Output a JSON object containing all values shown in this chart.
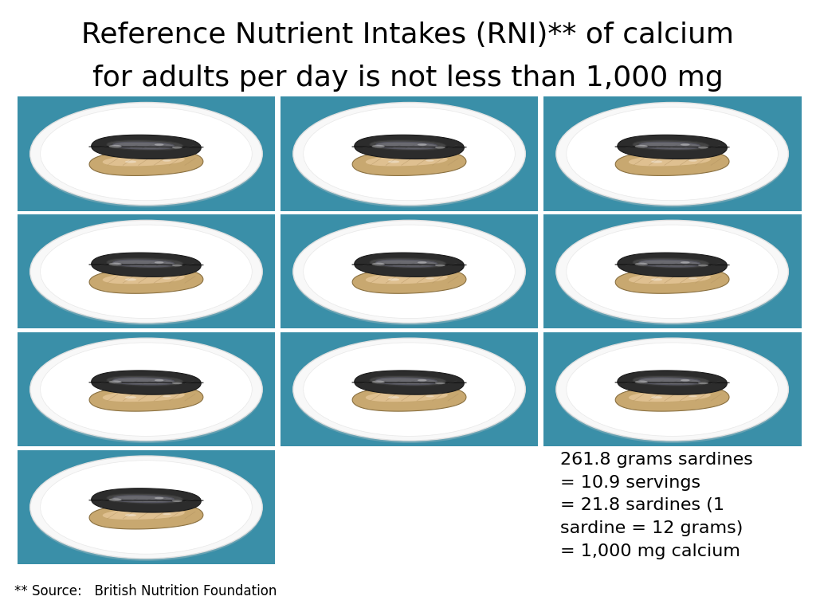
{
  "title_line1": "Reference Nutrient Intakes (RNI)** of calcium",
  "title_line2": "for adults per day is not less than 1,000 mg",
  "annotation_lines": [
    "261.8 grams sardines",
    "= 10.9 servings",
    "= 21.8 sardines (1",
    "sardine = 12 grams)",
    "= 1,000 mg calcium"
  ],
  "source_text": "** Source:   British Nutrition Foundation",
  "bg_color": "#ffffff",
  "plate_bg_color": "#3a8fa8",
  "title_fontsize": 26,
  "annotation_fontsize": 16,
  "source_fontsize": 12,
  "grid_rows": 4,
  "grid_cols": 3,
  "full_plates": 10
}
